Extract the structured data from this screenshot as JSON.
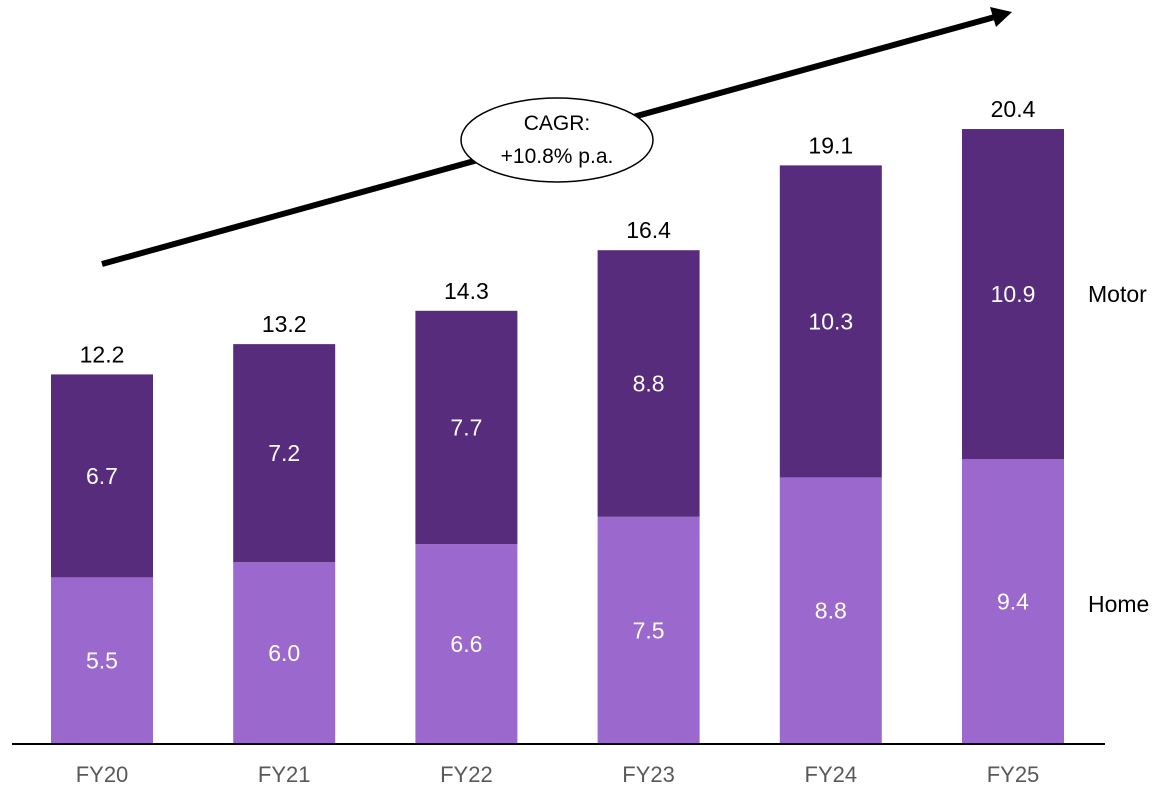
{
  "chart_data": {
    "type": "bar",
    "stacked": true,
    "categories": [
      "FY20",
      "FY21",
      "FY22",
      "FY23",
      "FY24",
      "FY25"
    ],
    "series": [
      {
        "name": "Home",
        "values": [
          5.5,
          6.0,
          6.6,
          7.5,
          8.8,
          9.4
        ],
        "color": "#9b69cd"
      },
      {
        "name": "Motor",
        "values": [
          6.7,
          7.2,
          7.7,
          8.8,
          10.3,
          10.9
        ],
        "color": "#582c7d"
      }
    ],
    "totals": [
      "12.2",
      "13.2",
      "14.3",
      "16.4",
      "19.1",
      "20.4"
    ],
    "value_labels": {
      "Home": [
        "5.5",
        "6.0",
        "6.6",
        "7.5",
        "8.8",
        "9.4"
      ],
      "Motor": [
        "6.7",
        "7.2",
        "7.7",
        "8.8",
        "10.3",
        "10.9"
      ]
    },
    "annotation": {
      "line1": "CAGR:",
      "line2": "+10.8% p.a."
    },
    "legend_placement": "right",
    "grid": false,
    "ylim": [
      0,
      20.4
    ]
  }
}
